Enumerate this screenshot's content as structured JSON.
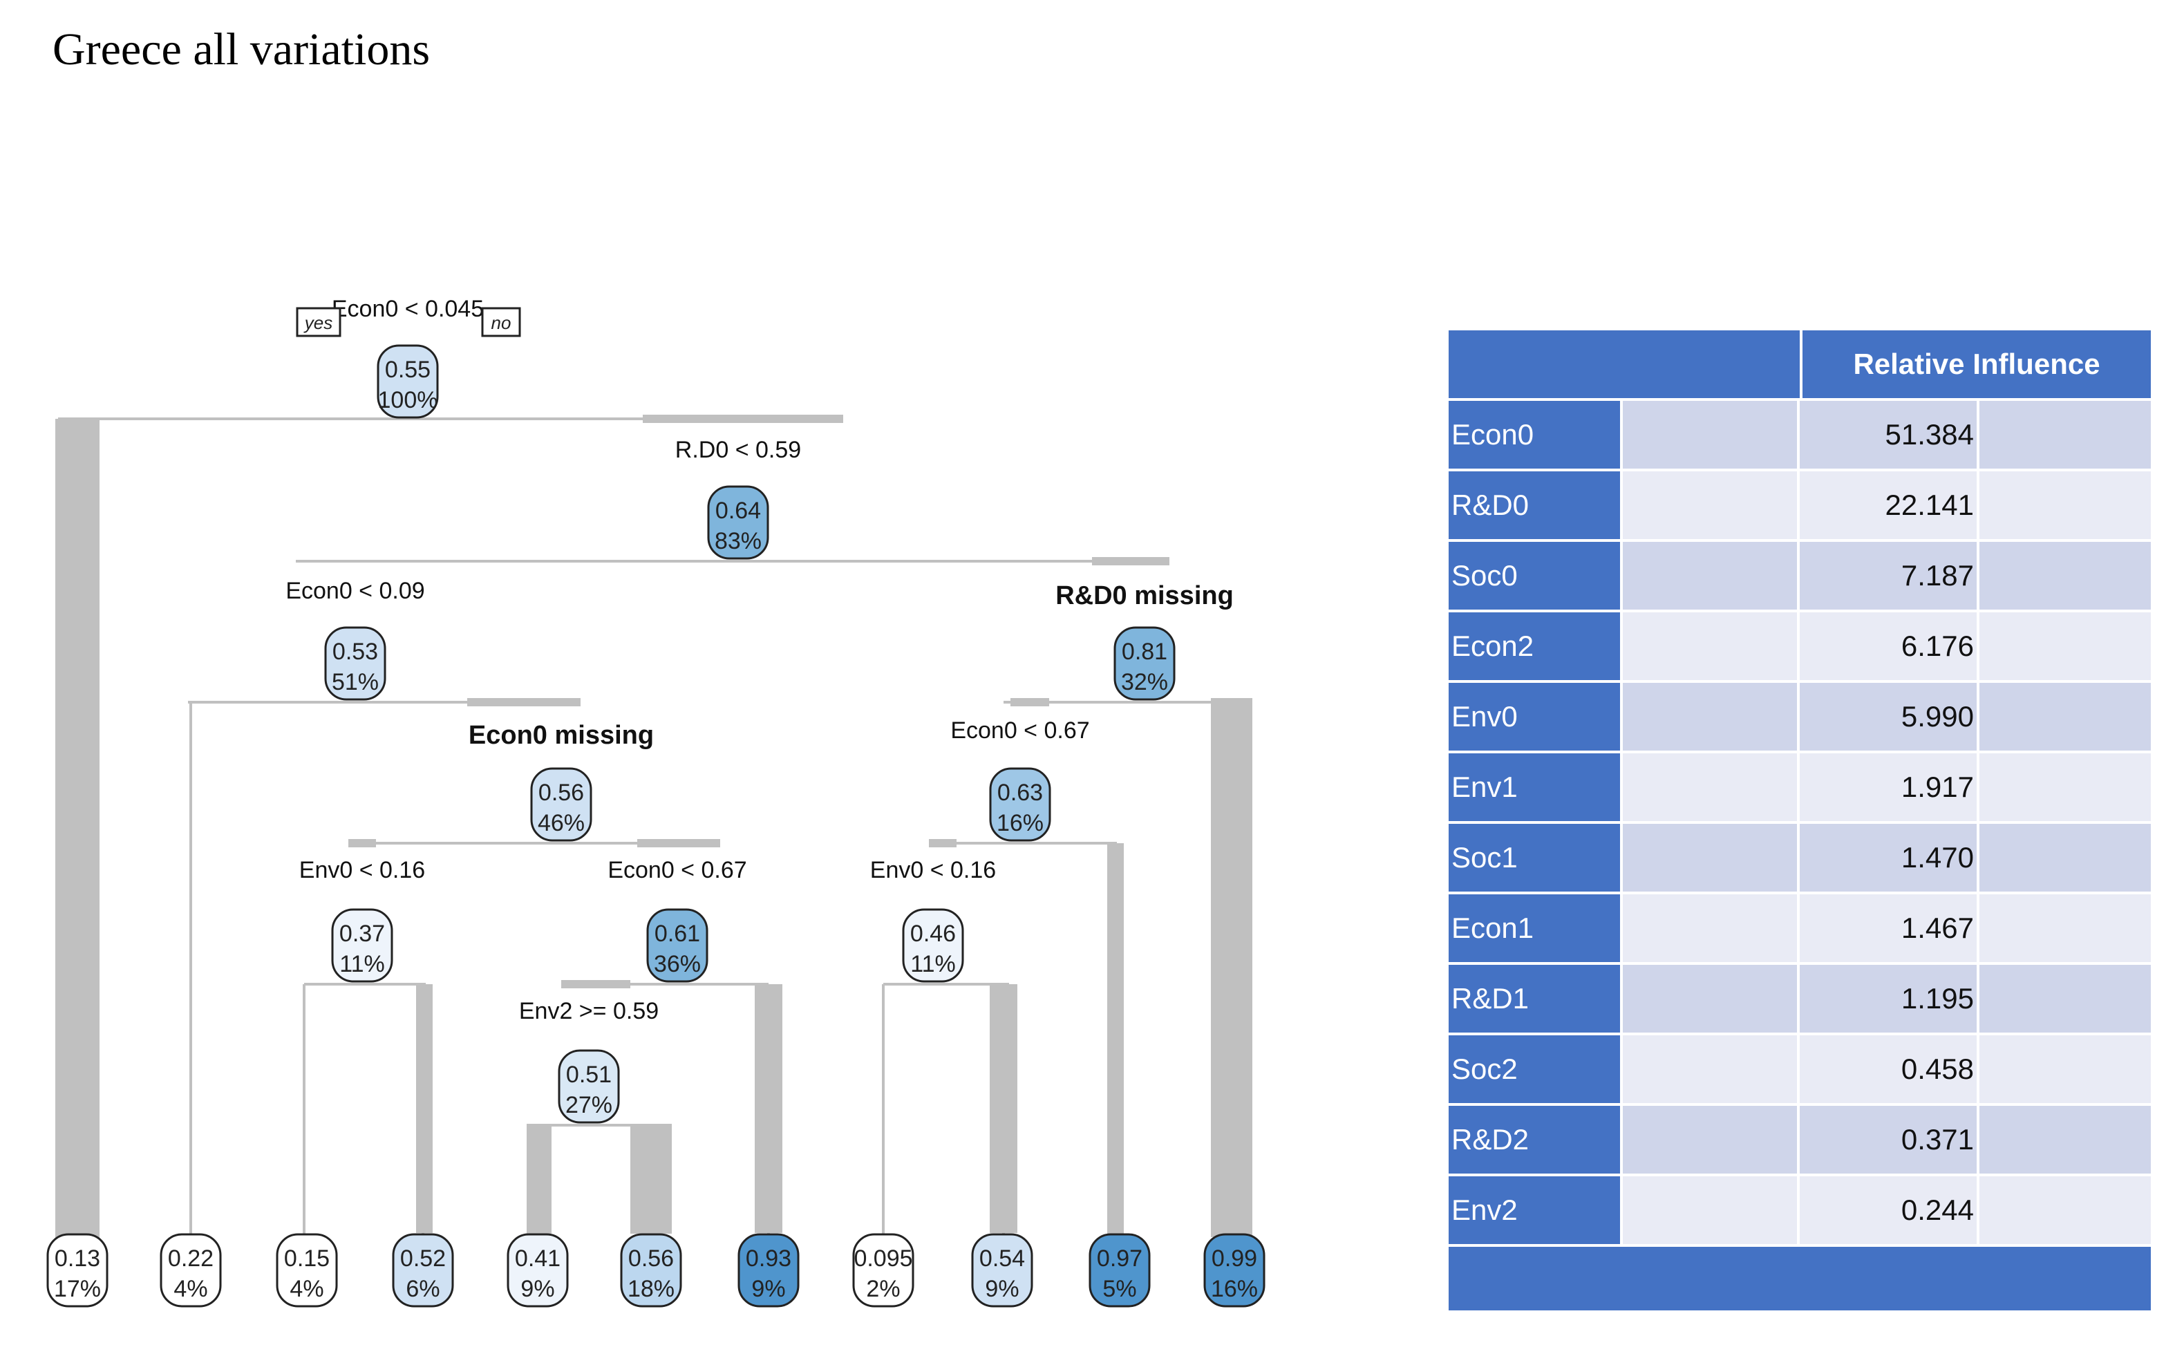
{
  "title": "Greece all variations",
  "tree": {
    "yes_label": "yes",
    "no_label": "no",
    "nodes": [
      {
        "id": "root",
        "value": "0.55",
        "pct": "100%",
        "split": "Econ0 < 0.045",
        "color": "#cfe1f3"
      },
      {
        "id": "n_rd0",
        "value": "0.64",
        "pct": "83%",
        "split": "R.D0 < 0.59",
        "color": "#7fb5dc"
      },
      {
        "id": "n_econ009",
        "value": "0.53",
        "pct": "51%",
        "split": "Econ0 < 0.09",
        "color": "#cfe1f3"
      },
      {
        "id": "n_rdmiss",
        "value": "0.81",
        "pct": "32%",
        "split": "R&D0 missing",
        "color": "#7fb5dc"
      },
      {
        "id": "n_econmiss",
        "value": "0.56",
        "pct": "46%",
        "split": "Econ0 missing",
        "color": "#cfe1f3"
      },
      {
        "id": "n_econ067b",
        "value": "0.63",
        "pct": "16%",
        "split": "Econ0 < 0.67",
        "color": "#9ec7e6"
      },
      {
        "id": "n_env016a",
        "value": "0.37",
        "pct": "11%",
        "split": "Env0 < 0.16",
        "color": "#eef4fb"
      },
      {
        "id": "n_econ067a",
        "value": "0.61",
        "pct": "36%",
        "split": "Econ0 < 0.67",
        "color": "#7fb5dc"
      },
      {
        "id": "n_env016b",
        "value": "0.46",
        "pct": "11%",
        "split": "Env0 < 0.16",
        "color": "#eef4fb"
      },
      {
        "id": "n_env2",
        "value": "0.51",
        "pct": "27%",
        "split": "Env2 >= 0.59",
        "color": "#d9e8f5"
      }
    ],
    "leaves": [
      {
        "value": "0.13",
        "pct": "17%",
        "color": "#ffffff"
      },
      {
        "value": "0.22",
        "pct": "4%",
        "color": "#ffffff"
      },
      {
        "value": "0.15",
        "pct": "4%",
        "color": "#ffffff"
      },
      {
        "value": "0.52",
        "pct": "6%",
        "color": "#cfe1f3"
      },
      {
        "value": "0.41",
        "pct": "9%",
        "color": "#eef4fb"
      },
      {
        "value": "0.56",
        "pct": "18%",
        "color": "#bcd7ef"
      },
      {
        "value": "0.93",
        "pct": "9%",
        "color": "#4f95cd"
      },
      {
        "value": "0.095",
        "pct": "2%",
        "color": "#ffffff"
      },
      {
        "value": "0.54",
        "pct": "9%",
        "color": "#cfe1f3"
      },
      {
        "value": "0.97",
        "pct": "5%",
        "color": "#4f95cd"
      },
      {
        "value": "0.99",
        "pct": "16%",
        "color": "#4f95cd"
      }
    ]
  },
  "table": {
    "header": "Relative Influence",
    "rows": [
      {
        "name": "Econ0",
        "value": "51.384"
      },
      {
        "name": "R&D0",
        "value": "22.141"
      },
      {
        "name": "Soc0",
        "value": "7.187"
      },
      {
        "name": "Econ2",
        "value": "6.176"
      },
      {
        "name": "Env0",
        "value": "5.990"
      },
      {
        "name": "Env1",
        "value": "1.917"
      },
      {
        "name": "Soc1",
        "value": "1.470"
      },
      {
        "name": "Econ1",
        "value": "1.467"
      },
      {
        "name": "R&D1",
        "value": "1.195"
      },
      {
        "name": "Soc2",
        "value": "0.458"
      },
      {
        "name": "R&D2",
        "value": "0.371"
      },
      {
        "name": "Env2",
        "value": "0.244"
      }
    ]
  },
  "colors": {
    "header_blue": "#4472c4",
    "row_dark": "#cfd5ea",
    "row_light": "#e9ebf5",
    "branch_gray": "#c0c0c0"
  }
}
